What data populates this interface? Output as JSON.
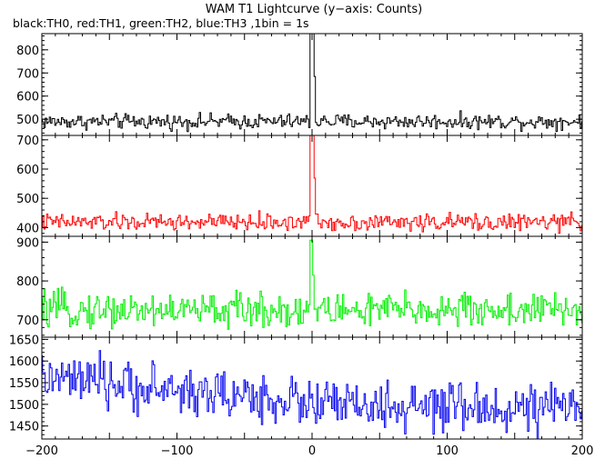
{
  "chart_data": {
    "type": "line",
    "title": "WAM T1 Lightcurve (y−axis: Counts)",
    "subtitle": "black:TH0, red:TH1, green:TH2, blue:TH3 ,1bin = 1s",
    "x_range": [
      -200,
      200
    ],
    "x_ticks": [
      -200,
      -100,
      0,
      100,
      200
    ],
    "x_tick_labels": [
      "−200",
      "−100",
      "0",
      "100",
      "200"
    ],
    "panels": [
      {
        "series": "TH0",
        "color": "#000000",
        "ylim": [
          430,
          870
        ],
        "y_ticks": [
          500,
          600,
          700,
          800
        ],
        "y_tick_labels": [
          "500",
          "600",
          "700",
          "800"
        ],
        "baseline": 490,
        "noise": 20,
        "burst_peak": 880,
        "burst_start": -1,
        "burst_end": 2
      },
      {
        "series": "TH1",
        "color": "#ff0000",
        "ylim": [
          370,
          715
        ],
        "y_ticks": [
          400,
          500,
          600,
          700
        ],
        "y_tick_labels": [
          "400",
          "500",
          "600",
          "700"
        ],
        "baseline": 418,
        "noise": 18,
        "burst_peak": 720,
        "burst_start": -1,
        "burst_end": 2
      },
      {
        "series": "TH2",
        "color": "#00ee00",
        "ylim": [
          655,
          915
        ],
        "y_ticks": [
          700,
          800,
          900
        ],
        "y_tick_labels": [
          "700",
          "800",
          "900"
        ],
        "baseline": 725,
        "noise": 28,
        "burst_peak": 905,
        "burst_start": -1,
        "burst_end": 1
      },
      {
        "series": "TH3",
        "color": "#0000ee",
        "ylim": [
          1420,
          1655
        ],
        "y_ticks": [
          1450,
          1500,
          1550,
          1600,
          1650
        ],
        "y_tick_labels": [
          "1450",
          "1500",
          "1550",
          "1600",
          "1650"
        ],
        "baseline": 1510,
        "noise": 35,
        "trend_start": 1560,
        "trend_end": 1490,
        "burst_peak": null
      }
    ]
  }
}
